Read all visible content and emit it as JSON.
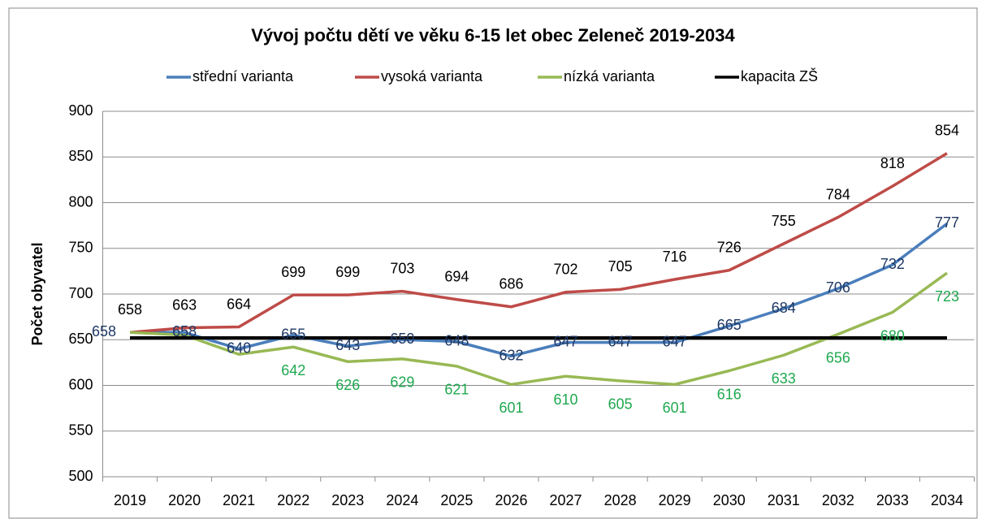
{
  "chart_data": {
    "type": "line",
    "title": "Vývoj počtu dětí ve věku 6-15 let obec Zeleneč 2019-2034",
    "y_label": "Počet obyvatel",
    "categories": [
      "2019",
      "2020",
      "2021",
      "2022",
      "2023",
      "2024",
      "2025",
      "2026",
      "2027",
      "2028",
      "2029",
      "2030",
      "2031",
      "2032",
      "2033",
      "2034"
    ],
    "series": [
      {
        "name": "střední varianta",
        "color": "#4a7ebb",
        "label_color": "#1f3864",
        "values": [
          658,
          658,
          640,
          655,
          643,
          650,
          648,
          632,
          647,
          647,
          647,
          665,
          684,
          706,
          732,
          777
        ]
      },
      {
        "name": "vysoká varianta",
        "color": "#be4b48",
        "label_color": "#000000",
        "values": [
          658,
          663,
          664,
          699,
          699,
          703,
          694,
          686,
          702,
          705,
          716,
          726,
          755,
          784,
          818,
          854
        ]
      },
      {
        "name": "nízká varianta",
        "color": "#98b954",
        "label_color": "#1fa84f",
        "values": [
          658,
          655,
          634,
          642,
          626,
          629,
          621,
          601,
          610,
          605,
          601,
          616,
          633,
          656,
          680,
          723
        ],
        "value_labels": [
          null,
          null,
          null,
          "642",
          "626",
          "629",
          "621",
          "601",
          "610",
          "605",
          "601",
          "616",
          "633",
          "656",
          "680",
          "723"
        ]
      },
      {
        "name": "kapacita ZŠ",
        "color": "#000000",
        "values": [
          652,
          652,
          652,
          652,
          652,
          652,
          652,
          652,
          652,
          652,
          652,
          652,
          652,
          652,
          652,
          652
        ]
      }
    ],
    "ylim": [
      500,
      900
    ],
    "yticks": [
      500,
      550,
      600,
      650,
      700,
      750,
      800,
      850,
      900
    ],
    "grid": true,
    "legend": "top"
  }
}
